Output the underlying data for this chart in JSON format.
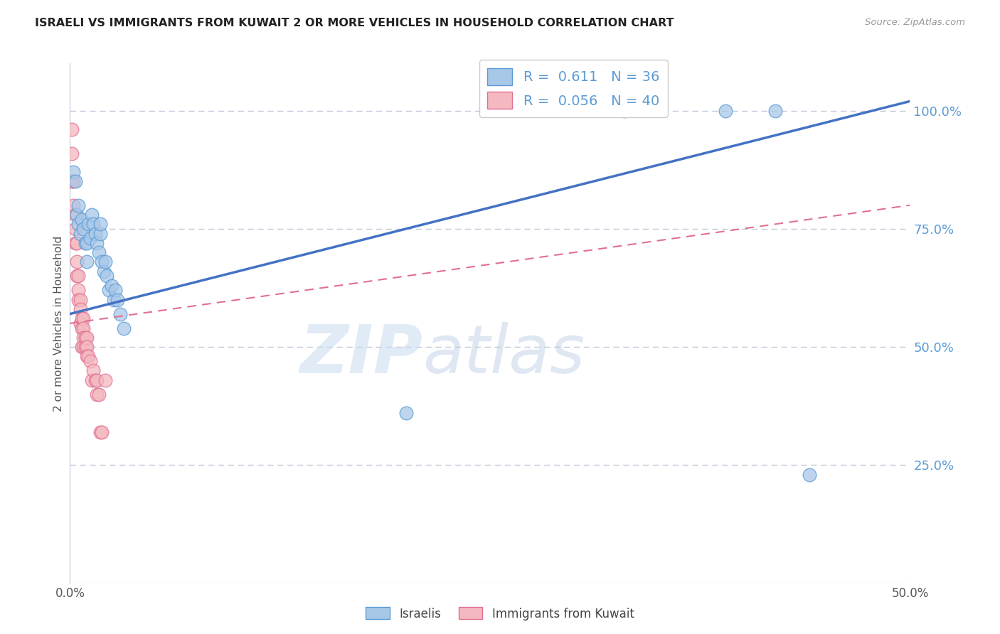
{
  "title": "ISRAELI VS IMMIGRANTS FROM KUWAIT 2 OR MORE VEHICLES IN HOUSEHOLD CORRELATION CHART",
  "source": "Source: ZipAtlas.com",
  "ylabel": "2 or more Vehicles in Household",
  "watermark_zip": "ZIP",
  "watermark_atlas": "atlas",
  "legend_blue_r": "0.611",
  "legend_blue_n": "36",
  "legend_pink_r": "0.056",
  "legend_pink_n": "40",
  "legend_blue_label": "Israelis",
  "legend_pink_label": "Immigrants from Kuwait",
  "ytick_labels": [
    "100.0%",
    "75.0%",
    "50.0%",
    "25.0%"
  ],
  "ytick_values": [
    1.0,
    0.75,
    0.5,
    0.25
  ],
  "xlim": [
    0.0,
    0.5
  ],
  "ylim": [
    0.0,
    1.1
  ],
  "blue_fill_color": "#a8c8e8",
  "pink_fill_color": "#f4b8c0",
  "blue_edge_color": "#5b9bd5",
  "pink_edge_color": "#e07090",
  "blue_line_color": "#4472c4",
  "pink_line_color": "#e07090",
  "grid_color": "#c0c8d8",
  "right_label_color": "#5b9bd5",
  "blue_points_x": [
    0.002,
    0.003,
    0.004,
    0.005,
    0.005,
    0.006,
    0.007,
    0.008,
    0.009,
    0.01,
    0.01,
    0.011,
    0.012,
    0.013,
    0.014,
    0.015,
    0.016,
    0.017,
    0.018,
    0.018,
    0.019,
    0.02,
    0.021,
    0.022,
    0.023,
    0.025,
    0.026,
    0.027,
    0.028,
    0.03,
    0.032,
    0.2,
    0.33,
    0.39,
    0.42,
    0.44
  ],
  "blue_points_y": [
    0.87,
    0.85,
    0.78,
    0.8,
    0.76,
    0.74,
    0.77,
    0.75,
    0.72,
    0.72,
    0.68,
    0.76,
    0.73,
    0.78,
    0.76,
    0.74,
    0.72,
    0.7,
    0.74,
    0.76,
    0.68,
    0.66,
    0.68,
    0.65,
    0.62,
    0.63,
    0.6,
    0.62,
    0.6,
    0.57,
    0.54,
    0.36,
    1.0,
    1.0,
    1.0,
    0.23
  ],
  "pink_points_x": [
    0.001,
    0.001,
    0.001,
    0.002,
    0.002,
    0.003,
    0.003,
    0.003,
    0.004,
    0.004,
    0.004,
    0.005,
    0.005,
    0.005,
    0.006,
    0.006,
    0.006,
    0.007,
    0.007,
    0.007,
    0.008,
    0.008,
    0.008,
    0.008,
    0.009,
    0.009,
    0.01,
    0.01,
    0.01,
    0.011,
    0.012,
    0.013,
    0.014,
    0.015,
    0.016,
    0.016,
    0.017,
    0.018,
    0.019,
    0.021
  ],
  "pink_points_y": [
    0.96,
    0.91,
    0.85,
    0.85,
    0.8,
    0.78,
    0.75,
    0.72,
    0.72,
    0.68,
    0.65,
    0.65,
    0.62,
    0.6,
    0.6,
    0.58,
    0.55,
    0.56,
    0.54,
    0.5,
    0.56,
    0.54,
    0.52,
    0.5,
    0.52,
    0.5,
    0.52,
    0.5,
    0.48,
    0.48,
    0.47,
    0.43,
    0.45,
    0.43,
    0.43,
    0.4,
    0.4,
    0.32,
    0.32,
    0.43
  ],
  "blue_line_x0": 0.0,
  "blue_line_y0": 0.57,
  "blue_line_x1": 0.5,
  "blue_line_y1": 1.02,
  "pink_line_x0": 0.0,
  "pink_line_y0": 0.55,
  "pink_line_x1": 0.5,
  "pink_line_y1": 0.8
}
